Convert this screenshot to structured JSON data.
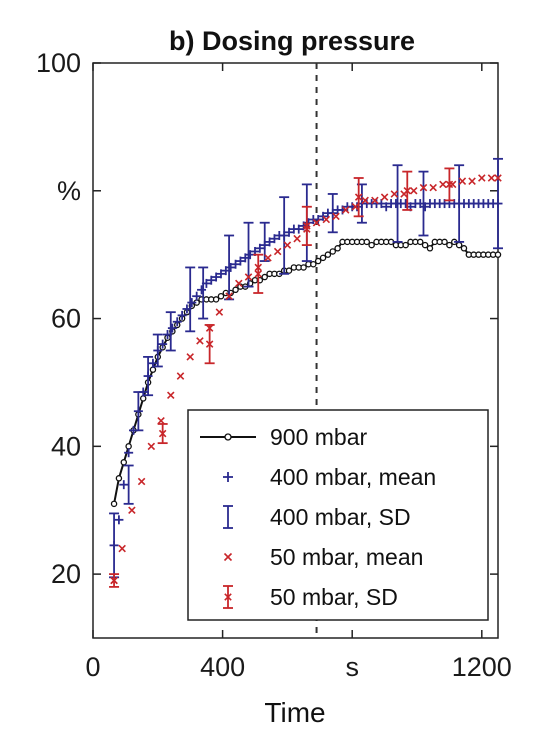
{
  "chart_data": {
    "type": "line",
    "title": "b) Dosing pressure",
    "xlabel": "Time",
    "ylabel": "",
    "xlim": [
      0,
      1250
    ],
    "ylim": [
      10,
      100
    ],
    "x_ticks": [
      {
        "value": 0,
        "label": "0"
      },
      {
        "value": 400,
        "label": "400"
      },
      {
        "value": 800,
        "label": "s"
      },
      {
        "value": 1200,
        "label": "1200"
      }
    ],
    "y_ticks": [
      {
        "value": 20,
        "label": "20"
      },
      {
        "value": 40,
        "label": "40"
      },
      {
        "value": 60,
        "label": "60"
      },
      {
        "value": 80,
        "label": "%"
      },
      {
        "value": 100,
        "label": "100"
      }
    ],
    "vline_x": 690,
    "legend_position": "bottom-right",
    "series": [
      {
        "name": "900 mbar",
        "style": "line-circle",
        "color": "#111111",
        "x": [
          65,
          80,
          95,
          110,
          125,
          140,
          155,
          170,
          185,
          200,
          215,
          230,
          245,
          260,
          275,
          290,
          305,
          320,
          335,
          350,
          365,
          380,
          395,
          410,
          425,
          440,
          455,
          470,
          485,
          500,
          515,
          530,
          545,
          560,
          575,
          590,
          605,
          620,
          635,
          650,
          665,
          680,
          695,
          710,
          725,
          740,
          755,
          770,
          785,
          800,
          815,
          830,
          845,
          860,
          875,
          890,
          905,
          920,
          935,
          950,
          965,
          980,
          995,
          1010,
          1025,
          1040,
          1055,
          1070,
          1085,
          1100,
          1115,
          1130,
          1145,
          1160,
          1175,
          1190,
          1205,
          1220,
          1235,
          1250
        ],
        "y": [
          31,
          35,
          37.5,
          40,
          42.5,
          45,
          47.5,
          50,
          52,
          54,
          55.5,
          57,
          58,
          59,
          60,
          61,
          62,
          62.5,
          63,
          63,
          63,
          63,
          63.5,
          64,
          64,
          64.5,
          65,
          65,
          65.5,
          66,
          66,
          66.5,
          67,
          67,
          67,
          67.5,
          67.5,
          68,
          68,
          68,
          68.5,
          68.5,
          69,
          69.5,
          70,
          70.5,
          71,
          72,
          72,
          72,
          72,
          72,
          72,
          71.5,
          72,
          72,
          72,
          72,
          71.5,
          71.5,
          71.5,
          72,
          72,
          72,
          71.5,
          71,
          72,
          72,
          72,
          71.5,
          72,
          71.5,
          71,
          70,
          70,
          70,
          70,
          70,
          70,
          70
        ]
      },
      {
        "name": "400 mbar, mean",
        "style": "plus",
        "color": "#2a2a8f",
        "x": [
          65,
          80,
          95,
          110,
          125,
          140,
          155,
          170,
          185,
          200,
          215,
          230,
          245,
          260,
          275,
          290,
          305,
          320,
          335,
          350,
          365,
          380,
          395,
          410,
          425,
          440,
          455,
          470,
          485,
          500,
          515,
          530,
          545,
          560,
          575,
          590,
          605,
          620,
          635,
          650,
          665,
          680,
          695,
          710,
          725,
          740,
          755,
          770,
          785,
          800,
          815,
          830,
          845,
          860,
          875,
          890,
          905,
          920,
          935,
          950,
          965,
          980,
          995,
          1010,
          1025,
          1040,
          1055,
          1070,
          1085,
          1100,
          1115,
          1130,
          1145,
          1160,
          1175,
          1190,
          1205,
          1220,
          1235,
          1250
        ],
        "y": [
          24.5,
          28.5,
          34,
          39,
          42.5,
          45.5,
          48.5,
          51,
          53,
          55,
          56,
          57.5,
          58.5,
          59.5,
          60.5,
          61.5,
          62.5,
          63.5,
          64.5,
          65.5,
          66,
          66.5,
          67,
          67.5,
          68,
          68.5,
          69,
          69.5,
          70,
          70.5,
          71,
          71.5,
          72,
          72.5,
          73,
          73,
          73.5,
          74,
          74,
          74.5,
          75,
          75.5,
          75.5,
          76,
          76.5,
          76.5,
          77,
          77,
          77.5,
          77.5,
          77.5,
          78,
          78,
          78,
          78,
          78,
          77.5,
          78,
          78,
          78,
          78,
          77.5,
          78,
          78,
          77.5,
          78,
          78,
          78,
          78,
          78,
          78,
          78,
          78,
          78,
          78,
          78,
          78,
          78,
          78,
          78
        ]
      },
      {
        "name": "400 mbar, SD",
        "style": "errorbar",
        "color": "#2a2a8f",
        "x": [
          65,
          110,
          140,
          170,
          200,
          240,
          300,
          340,
          420,
          480,
          530,
          590,
          660,
          740,
          830,
          940,
          1020,
          1130,
          1250
        ],
        "y": [
          24.5,
          34,
          45.5,
          51,
          55,
          58,
          63,
          64,
          68,
          70,
          72,
          73,
          75,
          76.5,
          78,
          78,
          78,
          78,
          78
        ],
        "err": [
          5,
          3,
          3,
          3,
          2.5,
          3,
          5,
          4,
          5,
          5,
          3,
          6,
          6,
          3,
          3,
          6,
          5,
          6,
          7
        ]
      },
      {
        "name": "50 mbar, mean",
        "style": "cross",
        "color": "#c8262a",
        "x": [
          65,
          90,
          120,
          150,
          180,
          210,
          240,
          270,
          300,
          330,
          360,
          390,
          420,
          450,
          480,
          510,
          540,
          570,
          600,
          630,
          660,
          690,
          720,
          750,
          780,
          810,
          840,
          870,
          900,
          930,
          960,
          990,
          1020,
          1050,
          1080,
          1110,
          1140,
          1170,
          1200,
          1230,
          1250
        ],
        "y": [
          19,
          24,
          30,
          34.5,
          40,
          44,
          48,
          51,
          54,
          56.5,
          58.5,
          61,
          63.5,
          65.5,
          66.5,
          68,
          69.5,
          70.5,
          71.5,
          72.5,
          74,
          75,
          75.5,
          76,
          77,
          77.5,
          78.5,
          78.5,
          79,
          79.5,
          79.5,
          80,
          80.5,
          80.5,
          81,
          81,
          81.5,
          81.5,
          82,
          82,
          82
        ]
      },
      {
        "name": "50 mbar, SD",
        "style": "errorbar",
        "color": "#c8262a",
        "x": [
          65,
          215,
          360,
          510,
          660,
          820,
          970,
          1100
        ],
        "y": [
          19,
          42,
          56,
          67,
          74.5,
          79,
          80,
          81
        ],
        "err": [
          1,
          1.5,
          3,
          3,
          3,
          3,
          3,
          2.5
        ]
      }
    ]
  }
}
